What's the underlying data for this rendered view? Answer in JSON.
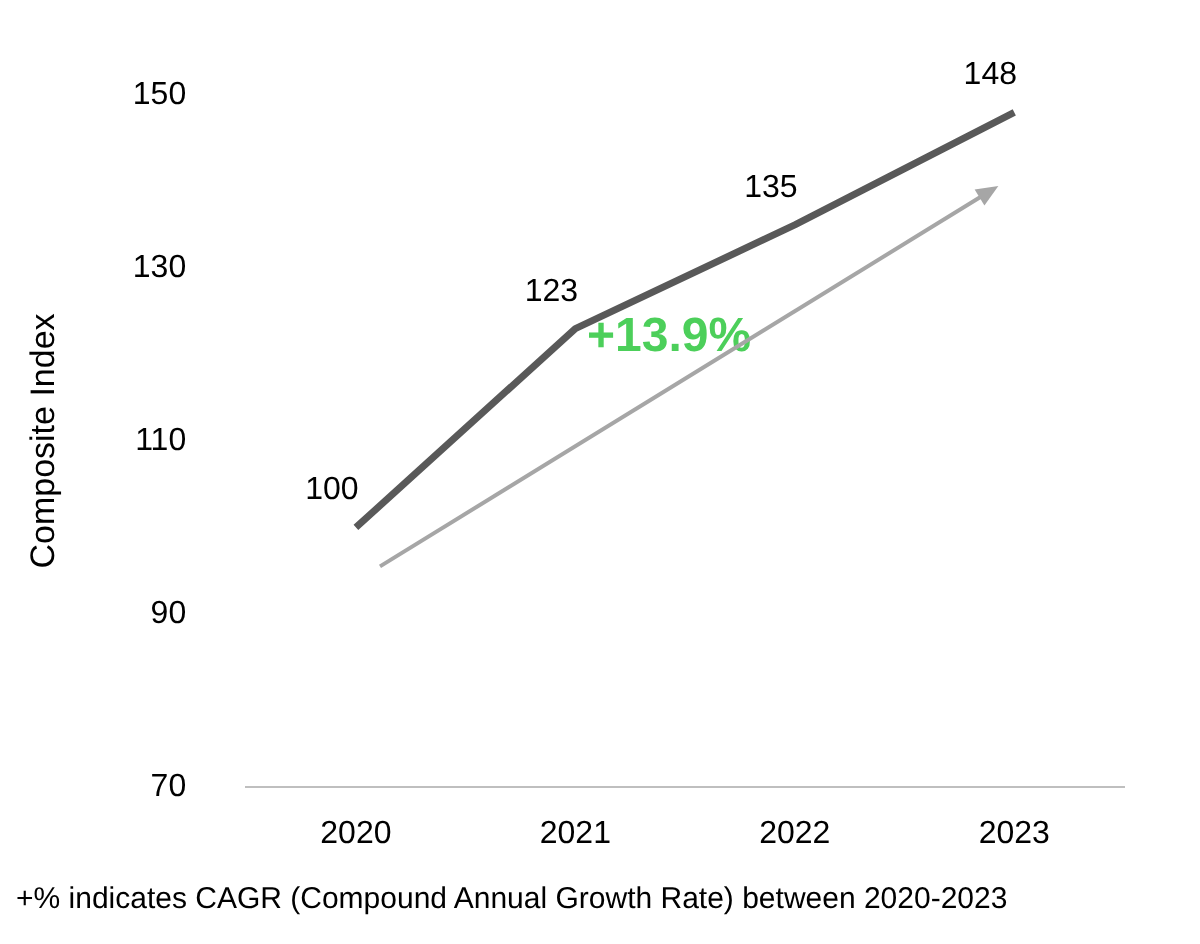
{
  "chart_data": {
    "type": "line",
    "ylabel": "Composite Index",
    "categories": [
      "2020",
      "2021",
      "2022",
      "2023"
    ],
    "series": [
      {
        "color": "#595959",
        "values": [
          100,
          123,
          135,
          148
        ]
      }
    ],
    "ylim": [
      70,
      150
    ],
    "yticks": [
      70,
      90,
      110,
      130,
      150
    ],
    "grid": false,
    "legend": false,
    "marker": "none",
    "line_style": "solid",
    "data_labels": true,
    "annotations": [
      "+13.9%",
      "+% indicates CAGR (Compound Annual Growth Rate) between 2020-2023"
    ]
  }
}
